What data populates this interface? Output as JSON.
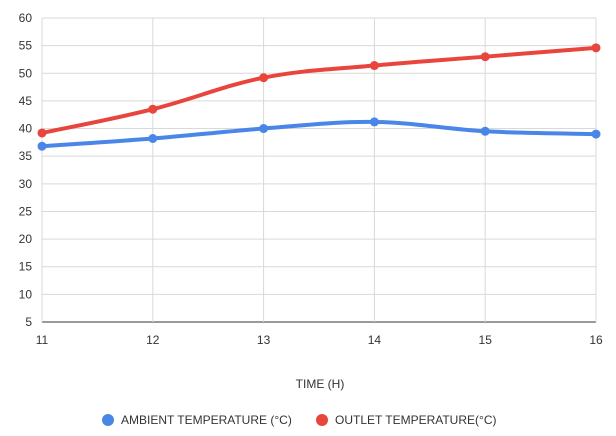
{
  "chart_data": {
    "type": "line",
    "title": "",
    "xlabel": "TIME (H)",
    "ylabel": "",
    "x": [
      11,
      12,
      13,
      14,
      15,
      16
    ],
    "ylim": [
      5,
      60
    ],
    "yticks": [
      5,
      10,
      15,
      20,
      25,
      30,
      35,
      40,
      45,
      50,
      55,
      60
    ],
    "grid": true,
    "legend_position": "bottom",
    "smooth": true,
    "series": [
      {
        "name": "AMBIENT TEMPERATURE (°C)",
        "color": "#4a86e8",
        "values": [
          36.8,
          38.2,
          40.0,
          41.2,
          39.5,
          39.0
        ]
      },
      {
        "name": "OUTLET TEMPERATURE(°C)",
        "color": "#e8453c",
        "values": [
          39.2,
          43.5,
          49.2,
          51.4,
          53.0,
          54.6
        ]
      }
    ]
  }
}
